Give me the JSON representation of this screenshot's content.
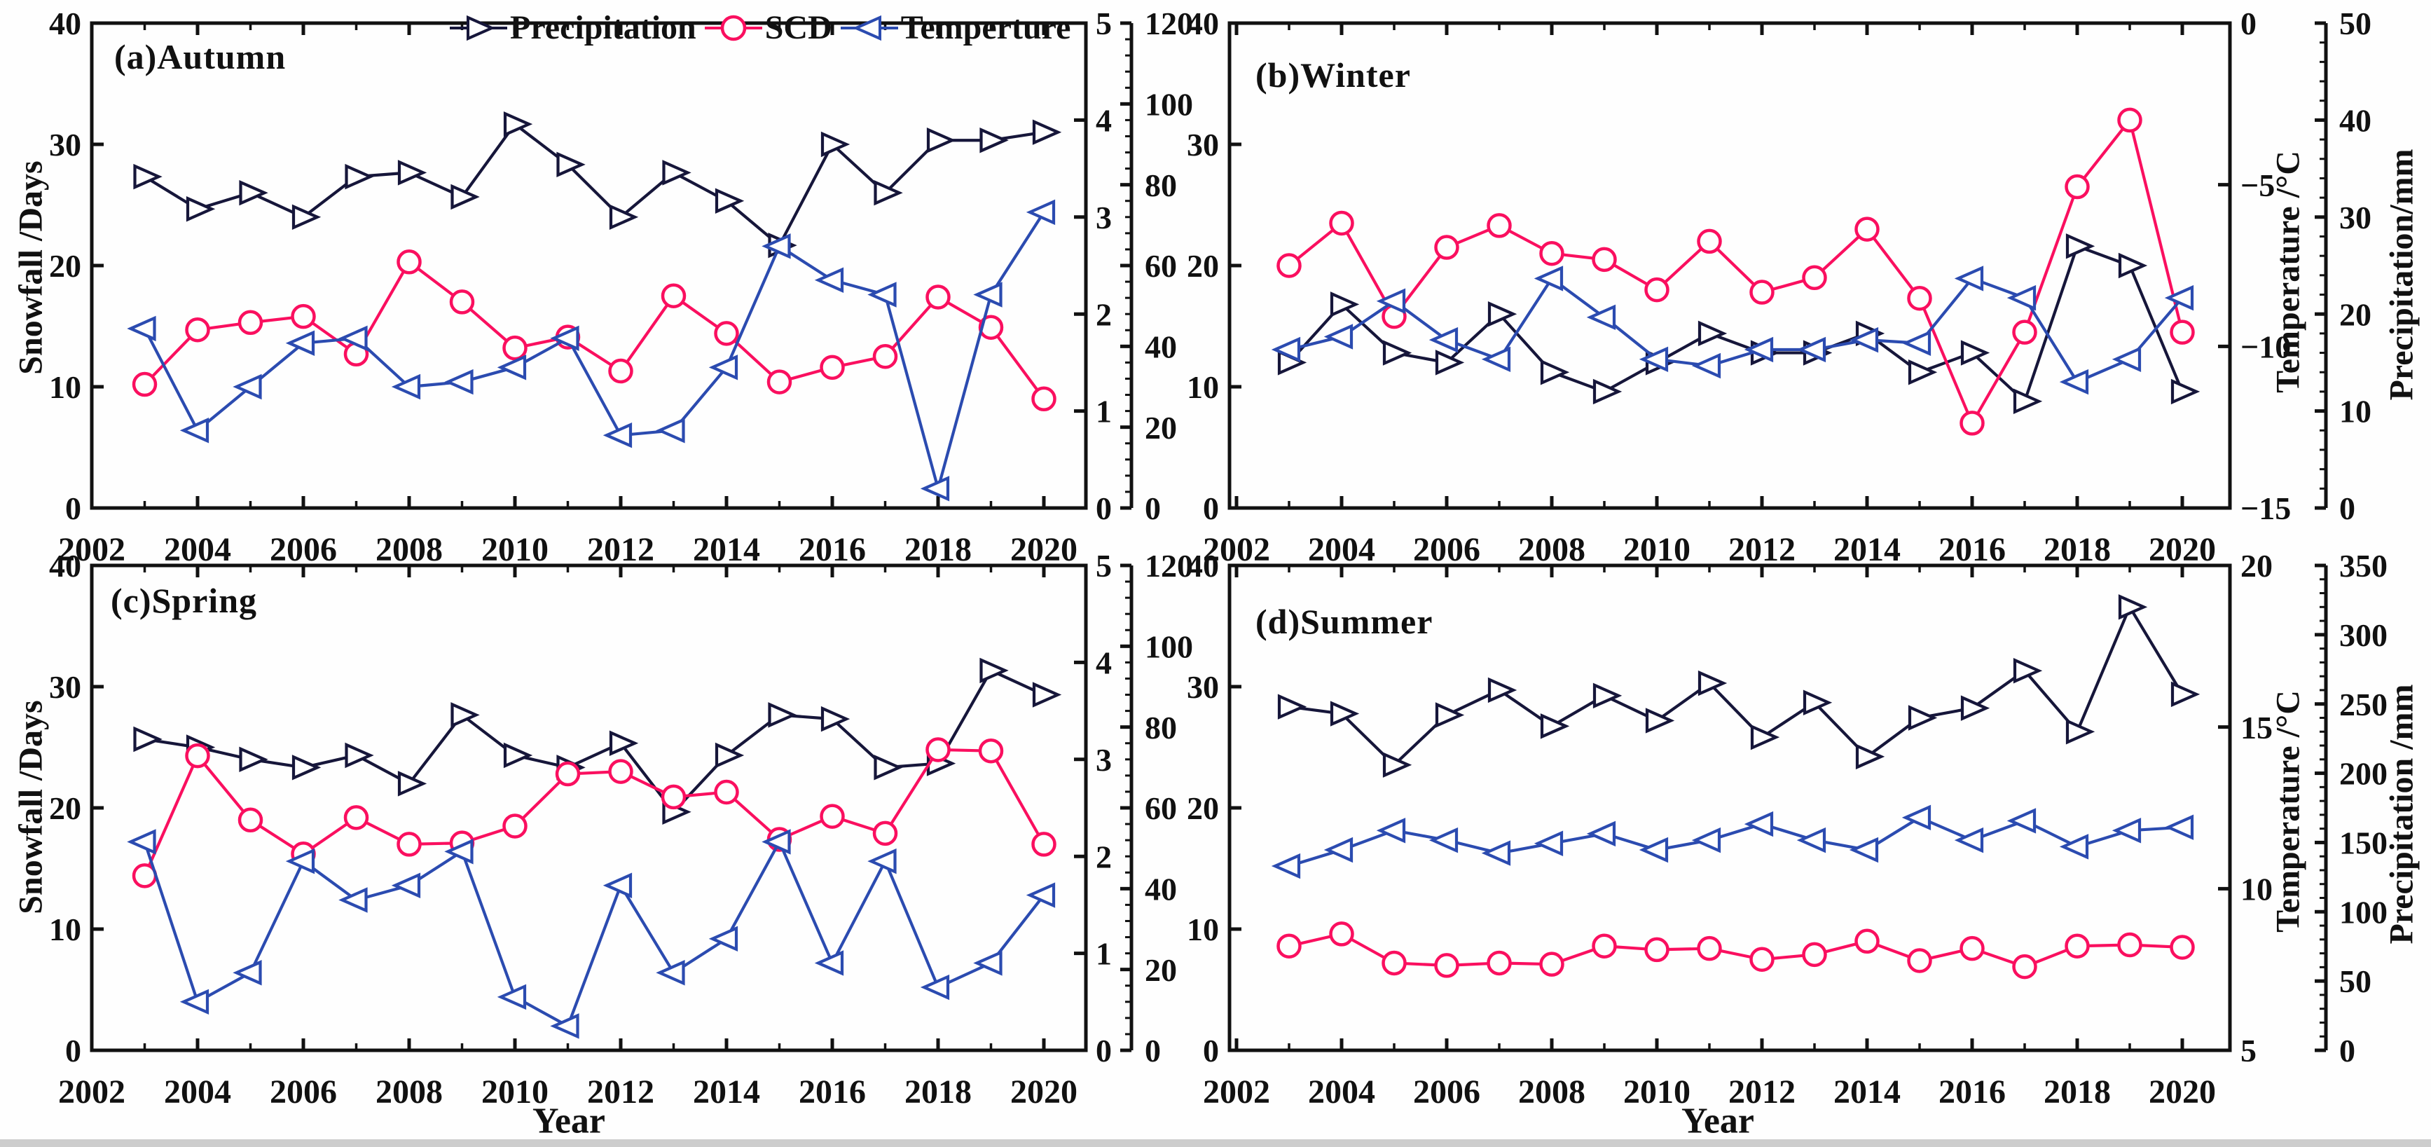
{
  "figure": {
    "background": "#fefefe",
    "text_color": "#111111",
    "border_color": "#111111"
  },
  "legend": {
    "items": [
      {
        "label": "Precipitation",
        "marker": "triangle-right",
        "color": "#16163a"
      },
      {
        "label": "SCD",
        "marker": "circle",
        "color": "#fa0f5f"
      },
      {
        "label": "Temperture",
        "marker": "triangle-left",
        "color": "#2b4bb0"
      }
    ]
  },
  "chart_data": {
    "type": "line",
    "x_axis": {
      "label": "Year",
      "min": 2002,
      "max": 2020.8,
      "major_ticks": [
        2002,
        2004,
        2006,
        2008,
        2010,
        2012,
        2014,
        2016,
        2018,
        2020
      ],
      "minor_ticks": [
        2003,
        2005,
        2007,
        2009,
        2011,
        2013,
        2015,
        2017,
        2019
      ]
    },
    "years": [
      2003,
      2004,
      2005,
      2006,
      2007,
      2008,
      2009,
      2010,
      2011,
      2012,
      2013,
      2014,
      2015,
      2016,
      2017,
      2018,
      2019,
      2020
    ],
    "panels": [
      {
        "id": "a",
        "title": "(a)Autumn",
        "left_axis": {
          "label": "Snowfall /Days",
          "min": 0,
          "max": 40,
          "ticks": [
            40,
            30,
            20,
            10,
            0
          ]
        },
        "right_axis": {
          "label": "",
          "min": 0,
          "max": 5,
          "ticks": [
            5,
            4,
            3,
            2,
            1,
            0
          ]
        },
        "far_right_axis": {
          "label": "",
          "min": 0,
          "max": 120,
          "ticks": [
            120,
            100,
            80,
            60,
            40,
            20,
            0
          ],
          "minor_step": 4
        },
        "series": [
          {
            "name": "Precipitation",
            "axis": "far_right",
            "unit": "mm",
            "values": [
              82,
              74,
              78,
              72,
              82,
              83,
              77,
              95,
              85,
              72,
              83,
              76,
              65,
              90,
              78,
              91,
              91,
              93
            ]
          },
          {
            "name": "SCD",
            "axis": "left",
            "unit": "days",
            "values": [
              10.2,
              14.7,
              15.3,
              15.8,
              12.7,
              20.3,
              17.0,
              13.2,
              14.1,
              11.3,
              17.5,
              14.4,
              10.4,
              11.6,
              12.5,
              17.4,
              14.9,
              9.0
            ]
          },
          {
            "name": "Temperture",
            "axis": "right",
            "unit": "C",
            "values": [
              1.85,
              0.8,
              1.25,
              1.7,
              1.75,
              1.25,
              1.3,
              1.45,
              1.75,
              0.75,
              0.8,
              1.45,
              2.7,
              2.35,
              2.2,
              0.2,
              2.2,
              3.05
            ]
          }
        ]
      },
      {
        "id": "b",
        "title": "(b)Winter",
        "left_axis": {
          "label": "",
          "min": 0,
          "max": 40,
          "ticks": [
            40,
            30,
            20,
            10,
            0
          ]
        },
        "right_axis": {
          "label": "Temperature /°C",
          "min": -15,
          "max": 0,
          "ticks": [
            0,
            -5,
            -10,
            -15
          ]
        },
        "far_right_axis": {
          "label": "Precipitation/mm",
          "min": 0,
          "max": 50,
          "ticks": [
            50,
            40,
            30,
            20,
            10,
            0
          ],
          "minor_step": 2
        },
        "series": [
          {
            "name": "Precipitation",
            "axis": "far_right",
            "unit": "mm",
            "values": [
              15,
              21,
              16,
              15,
              20,
              14,
              12,
              15,
              18,
              16,
              16,
              18,
              14,
              16,
              11,
              27,
              25,
              12
            ]
          },
          {
            "name": "SCD",
            "axis": "left",
            "unit": "days",
            "values": [
              20,
              23.5,
              15.8,
              21.5,
              23.3,
              21,
              20.5,
              18,
              22,
              17.8,
              19,
              23,
              17.3,
              7,
              14.5,
              26.5,
              32,
              14.5
            ]
          },
          {
            "name": "Temperture",
            "axis": "right",
            "unit": "C",
            "values": [
              -10.1,
              -9.7,
              -8.6,
              -9.8,
              -10.4,
              -7.9,
              -9.1,
              -10.4,
              -10.6,
              -10.1,
              -10.1,
              -9.8,
              -9.9,
              -7.9,
              -8.5,
              -11.1,
              -10.4,
              -8.5
            ]
          }
        ]
      },
      {
        "id": "c",
        "title": "(c)Spring",
        "left_axis": {
          "label": "Snowfall /Days",
          "min": 0,
          "max": 40,
          "ticks": [
            40,
            30,
            20,
            10,
            0
          ]
        },
        "right_axis": {
          "label": "",
          "min": 0,
          "max": 5,
          "ticks": [
            5,
            4,
            3,
            2,
            1,
            0
          ]
        },
        "far_right_axis": {
          "label": "",
          "min": 0,
          "max": 120,
          "ticks": [
            120,
            100,
            80,
            60,
            40,
            20,
            0
          ],
          "minor_step": 4
        },
        "series": [
          {
            "name": "Precipitation",
            "axis": "far_right",
            "unit": "mm",
            "values": [
              77,
              75,
              72,
              70,
              73,
              66,
              83,
              73,
              70,
              76,
              59,
              73,
              83,
              82,
              70,
              71,
              94,
              88
            ]
          },
          {
            "name": "SCD",
            "axis": "left",
            "unit": "days",
            "values": [
              14.4,
              24.3,
              19.0,
              16.2,
              19.2,
              17.0,
              17.1,
              18.5,
              22.8,
              23.0,
              20.9,
              21.3,
              17.4,
              19.3,
              17.9,
              24.8,
              24.7,
              17.0
            ]
          },
          {
            "name": "Temperture",
            "axis": "right",
            "unit": "C",
            "values": [
              2.15,
              0.5,
              0.8,
              1.95,
              1.55,
              1.7,
              2.05,
              0.55,
              0.25,
              1.7,
              0.8,
              1.15,
              2.15,
              0.9,
              1.95,
              0.65,
              0.9,
              1.6
            ]
          }
        ]
      },
      {
        "id": "d",
        "title": "(d)Summer",
        "left_axis": {
          "label": "",
          "min": 0,
          "max": 40,
          "ticks": [
            40,
            30,
            20,
            10,
            0
          ]
        },
        "right_axis": {
          "label": "Temperature /°C",
          "min": 5,
          "max": 20,
          "ticks": [
            20,
            15,
            10,
            5
          ]
        },
        "far_right_axis": {
          "label": "Precipitation /mm",
          "min": 0,
          "max": 350,
          "ticks": [
            350,
            300,
            250,
            200,
            150,
            100,
            50,
            0
          ],
          "minor_step": 10
        },
        "series": [
          {
            "name": "Precipitation",
            "axis": "far_right",
            "unit": "mm",
            "values": [
              248,
              243,
              206,
              242,
              260,
              234,
              256,
              238,
              265,
              226,
              251,
              212,
              240,
              247,
              274,
              230,
              320,
              257
            ]
          },
          {
            "name": "SCD",
            "axis": "left",
            "unit": "days",
            "values": [
              8.6,
              9.6,
              7.2,
              7.0,
              7.2,
              7.1,
              8.6,
              8.3,
              8.4,
              7.5,
              7.9,
              9.0,
              7.4,
              8.4,
              6.9,
              8.6,
              8.7,
              8.5
            ]
          },
          {
            "name": "Temperture",
            "axis": "right",
            "unit": "C",
            "values": [
              10.7,
              11.2,
              11.8,
              11.5,
              11.1,
              11.4,
              11.7,
              11.2,
              11.5,
              12.0,
              11.5,
              11.2,
              12.2,
              11.5,
              12.1,
              11.3,
              11.8,
              11.9
            ]
          }
        ]
      }
    ]
  }
}
